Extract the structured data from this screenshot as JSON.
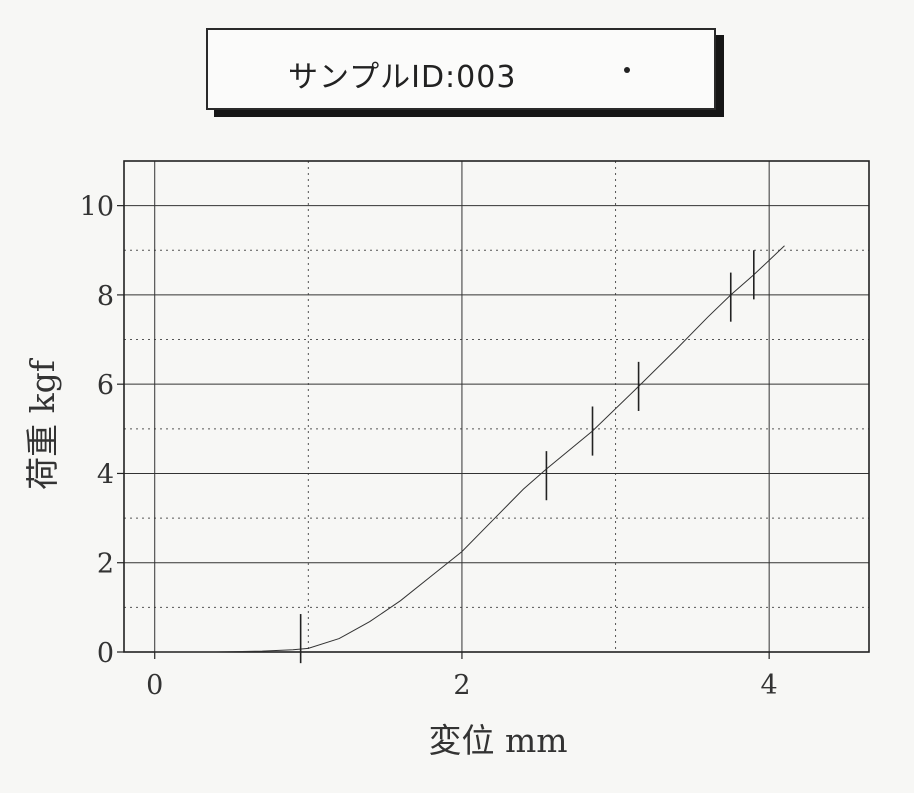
{
  "header": {
    "title": "サンプルID:003"
  },
  "chart_data": {
    "type": "line",
    "title": "サンプルID:003",
    "xlabel": "変位 mm",
    "ylabel": "荷重 kgf",
    "xlim": [
      -0.2,
      4.65
    ],
    "ylim": [
      0,
      11
    ],
    "x_ticks": [
      0,
      2,
      4
    ],
    "y_ticks": [
      0,
      2,
      4,
      6,
      8,
      10
    ],
    "x_tick_labels": [
      "0",
      "2",
      "4"
    ],
    "y_tick_labels": [
      "0",
      "2",
      "4",
      "6",
      "8",
      "10"
    ],
    "grid": true,
    "series": [
      {
        "x": [
          0,
          0.4,
          0.7,
          0.9,
          1.0,
          1.2,
          1.4,
          1.6,
          1.8,
          2.0,
          2.2,
          2.4,
          2.55,
          2.85,
          3.15,
          3.4,
          3.6,
          3.75,
          3.9,
          4.1
        ],
        "y": [
          0,
          0,
          0.02,
          0.05,
          0.08,
          0.3,
          0.68,
          1.15,
          1.7,
          2.25,
          2.95,
          3.65,
          4.1,
          4.95,
          5.95,
          6.8,
          7.5,
          8.0,
          8.45,
          9.1
        ]
      }
    ],
    "markers": [
      {
        "x": 0.95,
        "y": 0.3
      },
      {
        "x": 2.55,
        "y": 3.95
      },
      {
        "x": 2.85,
        "y": 4.95
      },
      {
        "x": 3.15,
        "y": 5.95
      },
      {
        "x": 3.75,
        "y": 7.95
      },
      {
        "x": 3.9,
        "y": 8.45
      }
    ],
    "marker_half_height": 0.55
  }
}
